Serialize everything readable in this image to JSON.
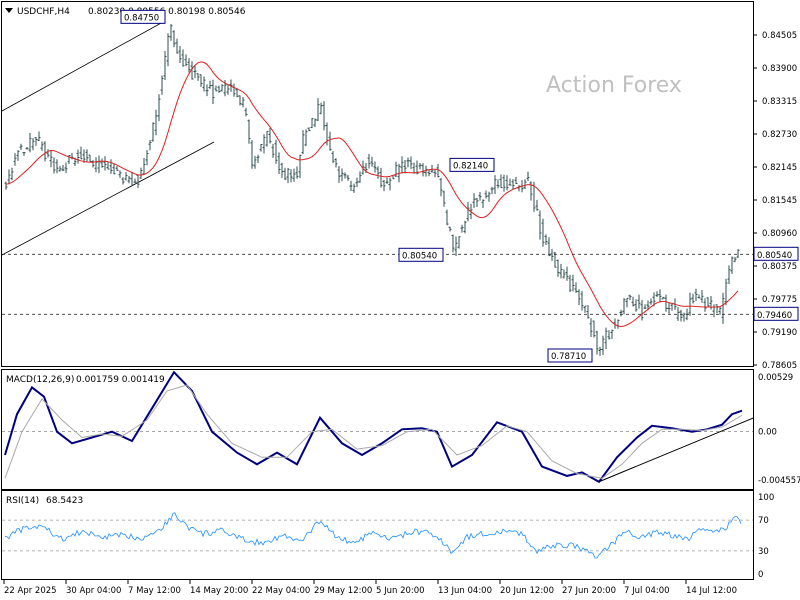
{
  "header": {
    "symbol_line": "USDCHF,H4",
    "ohlc": "0.80230 0.80556 0.80198 0.80546"
  },
  "watermark": "Action Forex",
  "colors": {
    "candles": "#2f4f4f",
    "sma": "#dd2222",
    "macd_line": "#000080",
    "macd_signal": "#aaaaaa",
    "rsi": "#1e90ff",
    "trendline": "#000000",
    "watermark": "#c0c0c0",
    "label_border": "#000080"
  },
  "chart_data": [
    {
      "type": "candlestick",
      "title": "USDCHF,H4",
      "ylim": [
        0.7853,
        0.8508
      ],
      "y_ticks": [
        "0.84505",
        "0.83900",
        "0.83315",
        "0.82730",
        "0.82145",
        "0.81545",
        "0.80960",
        "0.80375",
        "0.79775",
        "0.79190",
        "0.78605"
      ],
      "x_ticks": [
        "22 Apr 2025",
        "30 Apr 04:00",
        "7 May 12:00",
        "14 May 20:00",
        "22 May 04:00",
        "29 May 12:00",
        "5 Jun 20:00",
        "13 Jun 04:00",
        "20 Jun 12:00",
        "27 Jun 20:00",
        "7 Jul 04:00",
        "14 Jul 12:00"
      ],
      "price_labels": [
        {
          "text": "0.84750",
          "value": 0.8475,
          "bar": 163
        },
        {
          "text": "0.82140",
          "value": 0.8214,
          "bar": 452
        },
        {
          "text": "0.80540",
          "value": 0.8054,
          "bar": 452
        },
        {
          "text": "0.78710",
          "value": 0.7871,
          "bar": 596
        }
      ],
      "horizontal_levels": [
        {
          "value": 0.8054,
          "label": "0.80540"
        },
        {
          "value": 0.7946,
          "label": "0.79460"
        }
      ],
      "approx_path": [
        {
          "bar": 4,
          "close": 0.818
        },
        {
          "bar": 15,
          "close": 0.824
        },
        {
          "bar": 35,
          "close": 0.826
        },
        {
          "bar": 55,
          "close": 0.82
        },
        {
          "bar": 75,
          "close": 0.8235
        },
        {
          "bar": 95,
          "close": 0.8215
        },
        {
          "bar": 115,
          "close": 0.8195
        },
        {
          "bar": 135,
          "close": 0.8185
        },
        {
          "bar": 150,
          "close": 0.827
        },
        {
          "bar": 160,
          "close": 0.837
        },
        {
          "bar": 168,
          "close": 0.846
        },
        {
          "bar": 180,
          "close": 0.84
        },
        {
          "bar": 195,
          "close": 0.837
        },
        {
          "bar": 210,
          "close": 0.8345
        },
        {
          "bar": 228,
          "close": 0.8355
        },
        {
          "bar": 242,
          "close": 0.832
        },
        {
          "bar": 250,
          "close": 0.822
        },
        {
          "bar": 265,
          "close": 0.827
        },
        {
          "bar": 280,
          "close": 0.82
        },
        {
          "bar": 295,
          "close": 0.8195
        },
        {
          "bar": 302,
          "close": 0.827
        },
        {
          "bar": 318,
          "close": 0.832
        },
        {
          "bar": 330,
          "close": 0.822
        },
        {
          "bar": 350,
          "close": 0.817
        },
        {
          "bar": 365,
          "close": 0.822
        },
        {
          "bar": 382,
          "close": 0.818
        },
        {
          "bar": 400,
          "close": 0.8215
        },
        {
          "bar": 420,
          "close": 0.8205
        },
        {
          "bar": 435,
          "close": 0.82
        },
        {
          "bar": 445,
          "close": 0.811
        },
        {
          "bar": 452,
          "close": 0.8065
        },
        {
          "bar": 465,
          "close": 0.813
        },
        {
          "bar": 480,
          "close": 0.816
        },
        {
          "bar": 495,
          "close": 0.8185
        },
        {
          "bar": 515,
          "close": 0.8175
        },
        {
          "bar": 527,
          "close": 0.8185
        },
        {
          "bar": 540,
          "close": 0.8085
        },
        {
          "bar": 555,
          "close": 0.803
        },
        {
          "bar": 570,
          "close": 0.7995
        },
        {
          "bar": 585,
          "close": 0.7945
        },
        {
          "bar": 596,
          "close": 0.7885
        },
        {
          "bar": 610,
          "close": 0.792
        },
        {
          "bar": 625,
          "close": 0.7985
        },
        {
          "bar": 640,
          "close": 0.795
        },
        {
          "bar": 652,
          "close": 0.798
        },
        {
          "bar": 668,
          "close": 0.796
        },
        {
          "bar": 680,
          "close": 0.7935
        },
        {
          "bar": 690,
          "close": 0.7975
        },
        {
          "bar": 705,
          "close": 0.7965
        },
        {
          "bar": 718,
          "close": 0.795
        },
        {
          "bar": 725,
          "close": 0.801
        },
        {
          "bar": 733,
          "close": 0.8055
        },
        {
          "bar": 738,
          "close": 0.8054
        }
      ]
    },
    {
      "type": "line",
      "title": "MACD(12,26,9)",
      "values_text": "0.001759 0.001419",
      "ylim": [
        -0.00492,
        0.00529
      ],
      "y_ticks": [
        "0.00529",
        "0.00",
        "-0.004557"
      ],
      "zero_line": 0,
      "series": [
        {
          "role": "macd",
          "points": [
            [
              3,
              -0.002
            ],
            [
              15,
              0.0015
            ],
            [
              30,
              0.0038
            ],
            [
              42,
              0.003
            ],
            [
              55,
              0.0
            ],
            [
              70,
              -0.001
            ],
            [
              90,
              -0.0005
            ],
            [
              110,
              0.0
            ],
            [
              130,
              -0.0008
            ],
            [
              150,
              0.002
            ],
            [
              172,
              0.0051
            ],
            [
              190,
              0.0035
            ],
            [
              210,
              0.0
            ],
            [
              235,
              -0.0018
            ],
            [
              255,
              -0.0028
            ],
            [
              275,
              -0.0018
            ],
            [
              295,
              -0.0028
            ],
            [
              318,
              0.0012
            ],
            [
              340,
              -0.001
            ],
            [
              360,
              -0.002
            ],
            [
              380,
              -0.001
            ],
            [
              400,
              0.0002
            ],
            [
              420,
              0.0003
            ],
            [
              435,
              0.0
            ],
            [
              450,
              -0.003
            ],
            [
              470,
              -0.002
            ],
            [
              495,
              0.0008
            ],
            [
              520,
              0.0
            ],
            [
              540,
              -0.003
            ],
            [
              565,
              -0.0038
            ],
            [
              580,
              -0.0035
            ],
            [
              597,
              -0.0043
            ],
            [
              615,
              -0.0022
            ],
            [
              635,
              -0.0005
            ],
            [
              650,
              0.0005
            ],
            [
              670,
              0.0003
            ],
            [
              690,
              0.0
            ],
            [
              705,
              0.0002
            ],
            [
              720,
              0.0006
            ],
            [
              730,
              0.0015
            ],
            [
              740,
              0.0018
            ]
          ]
        },
        {
          "role": "signal",
          "points": [
            [
              3,
              -0.004
            ],
            [
              20,
              0.0
            ],
            [
              40,
              0.0028
            ],
            [
              60,
              0.001
            ],
            [
              80,
              -0.0005
            ],
            [
              100,
              -0.0002
            ],
            [
              120,
              -0.0004
            ],
            [
              145,
              0.001
            ],
            [
              165,
              0.0035
            ],
            [
              185,
              0.004
            ],
            [
              205,
              0.0015
            ],
            [
              230,
              -0.001
            ],
            [
              260,
              -0.0022
            ],
            [
              285,
              -0.0022
            ],
            [
              310,
              0.0
            ],
            [
              330,
              0.0002
            ],
            [
              355,
              -0.0015
            ],
            [
              380,
              -0.0012
            ],
            [
              405,
              0.0
            ],
            [
              430,
              0.0002
            ],
            [
              455,
              -0.002
            ],
            [
              480,
              -0.0012
            ],
            [
              505,
              0.0005
            ],
            [
              525,
              0.0
            ],
            [
              550,
              -0.0025
            ],
            [
              575,
              -0.0036
            ],
            [
              600,
              -0.004
            ],
            [
              620,
              -0.0028
            ],
            [
              640,
              -0.001
            ],
            [
              660,
              0.0002
            ],
            [
              680,
              0.0002
            ],
            [
              700,
              0.0001
            ],
            [
              720,
              0.0004
            ],
            [
              740,
              0.0014
            ]
          ]
        }
      ],
      "trendline": [
        [
          597,
          -0.0043
        ],
        [
          752,
          0.0012
        ]
      ]
    },
    {
      "type": "line",
      "title": "RSI(14)",
      "value_text": "68.5423",
      "ylim": [
        0,
        100
      ],
      "y_ticks": [
        "100",
        "70",
        "30",
        "0"
      ],
      "levels": [
        70,
        30
      ],
      "points": [
        [
          3,
          47
        ],
        [
          20,
          58
        ],
        [
          40,
          62
        ],
        [
          60,
          45
        ],
        [
          80,
          55
        ],
        [
          100,
          48
        ],
        [
          120,
          50
        ],
        [
          140,
          47
        ],
        [
          160,
          60
        ],
        [
          172,
          78
        ],
        [
          185,
          62
        ],
        [
          200,
          52
        ],
        [
          220,
          56
        ],
        [
          240,
          45
        ],
        [
          260,
          40
        ],
        [
          280,
          50
        ],
        [
          300,
          42
        ],
        [
          318,
          70
        ],
        [
          335,
          48
        ],
        [
          350,
          40
        ],
        [
          370,
          52
        ],
        [
          390,
          45
        ],
        [
          410,
          55
        ],
        [
          425,
          54
        ],
        [
          440,
          42
        ],
        [
          450,
          28
        ],
        [
          465,
          48
        ],
        [
          480,
          52
        ],
        [
          500,
          55
        ],
        [
          520,
          52
        ],
        [
          535,
          30
        ],
        [
          550,
          36
        ],
        [
          570,
          38
        ],
        [
          585,
          30
        ],
        [
          597,
          22
        ],
        [
          610,
          40
        ],
        [
          625,
          55
        ],
        [
          640,
          48
        ],
        [
          655,
          55
        ],
        [
          670,
          50
        ],
        [
          685,
          45
        ],
        [
          700,
          58
        ],
        [
          715,
          55
        ],
        [
          725,
          62
        ],
        [
          733,
          72
        ],
        [
          740,
          68.5
        ]
      ]
    }
  ]
}
